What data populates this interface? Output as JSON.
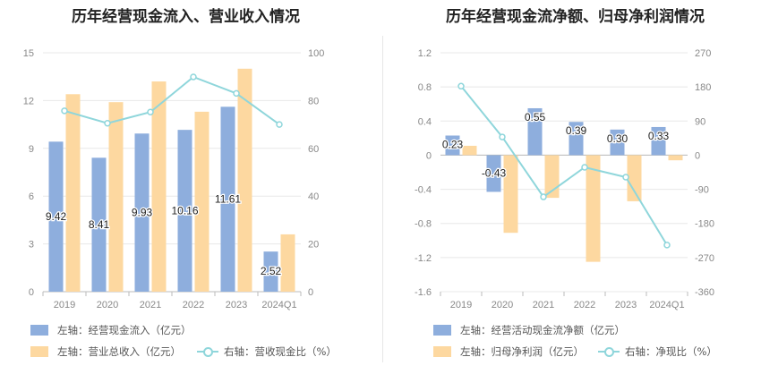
{
  "charts_meta": {
    "left_title": "历年经营现金流入、营业收入情况",
    "right_title": "历年经营现金流净额、归母净利润情况"
  },
  "legend": {
    "l1": "左轴：经营现金流入（亿元）",
    "l2": "左轴：营业总收入（亿元）",
    "l3": "右轴：营收现金比（%）",
    "r1": "左轴：经营活动现金流净额（亿元）",
    "r2": "左轴：归母净利润（亿元）",
    "r3": "右轴：净现比（%）"
  },
  "colors": {
    "blue": "#8eaedd",
    "orange": "#fdd8a0",
    "line": "#8fd6db",
    "grid": "#e8e8e8",
    "axis": "#888888"
  },
  "chart_data": [
    {
      "type": "bar",
      "title": "历年经营现金流入、营业收入情况",
      "categories": [
        "2019",
        "2020",
        "2021",
        "2022",
        "2023",
        "2024Q1"
      ],
      "series": [
        {
          "name": "左轴：经营现金流入（亿元）",
          "type": "bar",
          "axis": "left",
          "values": [
            9.42,
            8.41,
            9.93,
            10.16,
            11.61,
            2.52
          ],
          "labels": [
            "9.42",
            "8.41",
            "9.93",
            "10.16",
            "11.61",
            "2.52"
          ]
        },
        {
          "name": "左轴：营业总收入（亿元）",
          "type": "bar",
          "axis": "left",
          "values": [
            12.4,
            11.9,
            13.2,
            11.3,
            14.0,
            3.6
          ]
        },
        {
          "name": "右轴：营收现金比（%）",
          "type": "line",
          "axis": "right",
          "values": [
            75.7,
            70.5,
            75.2,
            89.9,
            83.0,
            70.0
          ]
        }
      ],
      "left_ticks": [
        "15",
        "12",
        "9",
        "6",
        "3",
        "0"
      ],
      "right_ticks": [
        "100",
        "80",
        "60",
        "40",
        "20",
        "0"
      ],
      "ylim_left": [
        0,
        15
      ],
      "ylim_right": [
        0,
        100
      ],
      "grid": true
    },
    {
      "type": "bar",
      "title": "历年经营现金流净额、归母净利润情况",
      "categories": [
        "2019",
        "2020",
        "2021",
        "2022",
        "2023",
        "2024Q1"
      ],
      "series": [
        {
          "name": "左轴：经营活动现金流净额（亿元）",
          "type": "bar",
          "axis": "left",
          "values": [
            0.23,
            -0.43,
            0.55,
            0.39,
            0.3,
            0.33
          ],
          "labels": [
            "0.23",
            "-0.43",
            "0.55",
            "0.39",
            "0.30",
            "0.33"
          ]
        },
        {
          "name": "左轴：归母净利润（亿元）",
          "type": "bar",
          "axis": "left",
          "values": [
            0.11,
            -0.91,
            -0.5,
            -1.25,
            -0.54,
            -0.06
          ]
        },
        {
          "name": "右轴：净现比（%）",
          "type": "line",
          "axis": "right",
          "values": [
            182,
            48,
            -110,
            -32,
            -58,
            -237
          ]
        }
      ],
      "left_ticks": [
        "1.2",
        "0.8",
        "0.4",
        "0",
        "-0.4",
        "-0.8",
        "-1.2",
        "-1.6"
      ],
      "right_ticks": [
        "270",
        "180",
        "90",
        "0",
        "-90",
        "-180",
        "-270",
        "-360"
      ],
      "ylim_left": [
        -1.6,
        1.2
      ],
      "ylim_right": [
        -360,
        270
      ],
      "grid": true
    }
  ]
}
